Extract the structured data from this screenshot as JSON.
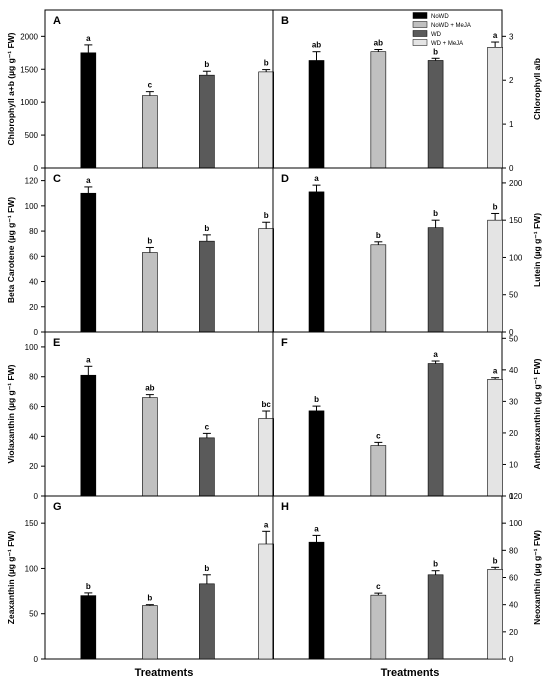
{
  "figure": {
    "xlabel": "Treatments",
    "legend": {
      "placement": "top-right of panel B",
      "entries": [
        {
          "label": "NoWD",
          "color": "#000000"
        },
        {
          "label": "NoWD + MeJA",
          "color": "#c0c0c0"
        },
        {
          "label": "WD",
          "color": "#5a5a5a"
        },
        {
          "label": "WD + MeJA",
          "color": "#e4e4e4"
        }
      ]
    }
  },
  "chart_data": [
    {
      "panel": "A",
      "type": "bar",
      "categories": [
        "NoWD",
        "NoWD + MeJA",
        "WD",
        "WD + MeJA"
      ],
      "values": [
        1750,
        1100,
        1410,
        1460
      ],
      "errors": [
        120,
        60,
        60,
        35
      ],
      "letters": [
        "a",
        "c",
        "b",
        "b"
      ],
      "ylabel": "Chlorophyll a+b (µg g⁻¹ FW)",
      "ylim": [
        0,
        2400
      ],
      "yticks": [
        0,
        500,
        1000,
        1500,
        2000
      ],
      "ylabel_side": "left"
    },
    {
      "panel": "B",
      "type": "bar",
      "categories": [
        "NoWD",
        "NoWD + MeJA",
        "WD",
        "WD + MeJA"
      ],
      "values": [
        2.45,
        2.65,
        2.45,
        2.75
      ],
      "errors": [
        0.2,
        0.05,
        0.05,
        0.12
      ],
      "letters": [
        "ab",
        "ab",
        "b",
        "a"
      ],
      "ylabel": "Chlorophyll a/b",
      "ylim": [
        0,
        3.6
      ],
      "yticks": [
        0,
        1,
        2,
        3
      ],
      "ylabel_side": "right"
    },
    {
      "panel": "C",
      "type": "bar",
      "categories": [
        "NoWD",
        "NoWD + MeJA",
        "WD",
        "WD + MeJA"
      ],
      "values": [
        110,
        63,
        72,
        82
      ],
      "errors": [
        5,
        4,
        5,
        5
      ],
      "letters": [
        "a",
        "b",
        "b",
        "b"
      ],
      "ylabel": "Beta Carotene (µg g⁻¹ FW)",
      "ylim": [
        0,
        130
      ],
      "yticks": [
        0,
        20,
        40,
        60,
        80,
        100,
        120
      ],
      "ylabel_side": "left"
    },
    {
      "panel": "D",
      "type": "bar",
      "categories": [
        "NoWD",
        "NoWD + MeJA",
        "WD",
        "WD + MeJA"
      ],
      "values": [
        188,
        117,
        140,
        150
      ],
      "errors": [
        9,
        4,
        10,
        9
      ],
      "letters": [
        "a",
        "b",
        "b",
        "b"
      ],
      "ylabel": "Lutein (µg g⁻¹ FW)",
      "ylim": [
        0,
        220
      ],
      "yticks": [
        0,
        50,
        100,
        150,
        200
      ],
      "ylabel_side": "right"
    },
    {
      "panel": "E",
      "type": "bar",
      "categories": [
        "NoWD",
        "NoWD + MeJA",
        "WD",
        "WD + MeJA"
      ],
      "values": [
        81,
        66,
        39,
        52
      ],
      "errors": [
        6,
        2,
        3,
        5
      ],
      "letters": [
        "a",
        "ab",
        "c",
        "bc"
      ],
      "ylabel": "Violaxanthin (µg g⁻¹ FW)",
      "ylim": [
        0,
        110
      ],
      "yticks": [
        0,
        20,
        40,
        60,
        80,
        100
      ],
      "ylabel_side": "left"
    },
    {
      "panel": "F",
      "type": "bar",
      "categories": [
        "NoWD",
        "NoWD + MeJA",
        "WD",
        "WD + MeJA"
      ],
      "values": [
        27,
        16,
        42,
        37
      ],
      "errors": [
        1.5,
        1.0,
        0.8,
        0.5
      ],
      "letters": [
        "b",
        "c",
        "a",
        "a"
      ],
      "ylabel": "Antheraxanthin (µg g⁻¹ FW)",
      "ylim": [
        0,
        52
      ],
      "yticks": [
        0,
        10,
        20,
        30,
        40,
        50
      ],
      "ylabel_side": "right"
    },
    {
      "panel": "G",
      "type": "bar",
      "categories": [
        "NoWD",
        "NoWD + MeJA",
        "WD",
        "WD + MeJA"
      ],
      "values": [
        70,
        59,
        83,
        127
      ],
      "errors": [
        3,
        1,
        10,
        14
      ],
      "letters": [
        "b",
        "b",
        "b",
        "a"
      ],
      "ylabel": "Zeaxanthin (µg g⁻¹ FW)",
      "ylim": [
        0,
        180
      ],
      "yticks": [
        0,
        50,
        100,
        150
      ],
      "ylabel_side": "left"
    },
    {
      "panel": "H",
      "type": "bar",
      "categories": [
        "NoWD",
        "NoWD + MeJA",
        "WD",
        "WD + MeJA"
      ],
      "values": [
        86,
        47,
        62,
        66
      ],
      "errors": [
        5,
        1.5,
        3,
        1.5
      ],
      "letters": [
        "a",
        "c",
        "b",
        "b"
      ],
      "ylabel": "Neoxanthin (µg g⁻¹ FW)",
      "ylim": [
        0,
        120
      ],
      "yticks": [
        0,
        20,
        40,
        60,
        80,
        100,
        120
      ],
      "ylabel_side": "right"
    }
  ]
}
